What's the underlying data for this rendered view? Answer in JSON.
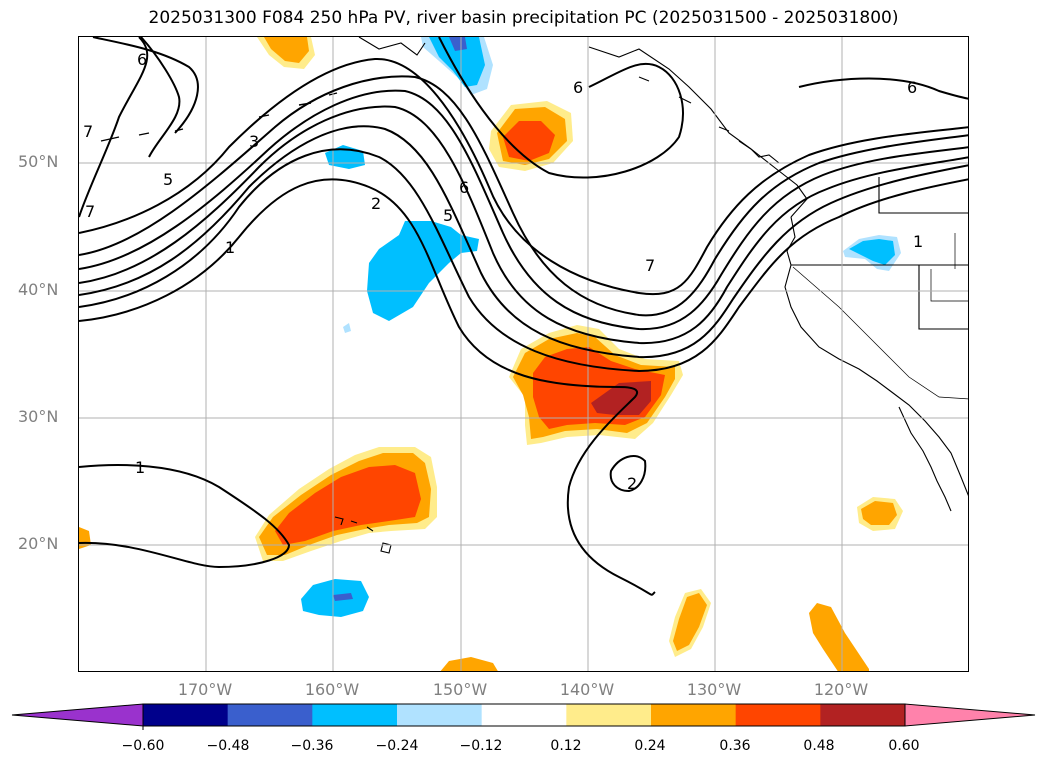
{
  "title": "2025031300 F084 250 hPa PV, river basin precipitation PC (2025031500 - 2025031800)",
  "lat_labels": [
    {
      "text": "50°N"
    },
    {
      "text": "40°N"
    },
    {
      "text": "30°N"
    },
    {
      "text": "20°N"
    }
  ],
  "lon_labels": [
    {
      "text": "170°W"
    },
    {
      "text": "160°W"
    },
    {
      "text": "150°W"
    },
    {
      "text": "140°W"
    },
    {
      "text": "130°W"
    },
    {
      "text": "120°W"
    }
  ],
  "contour_labels": [
    "6",
    "7",
    "7",
    "3",
    "5",
    "2",
    "1",
    "6",
    "5",
    "6",
    "7",
    "6",
    "1",
    "2"
  ],
  "colorbar": {
    "ticks": [
      "−0.60",
      "−0.48",
      "−0.36",
      "−0.24",
      "−0.12",
      "0.12",
      "0.24",
      "0.36",
      "0.48",
      "0.60"
    ],
    "colors": [
      "#9a32cd",
      "#00008b",
      "#3a5fcd",
      "#00bfff",
      "#b0e2ff",
      "#ffffff",
      "#ffec8b",
      "#ffa500",
      "#ff4500",
      "#b22222",
      "#ff82ab"
    ]
  }
}
